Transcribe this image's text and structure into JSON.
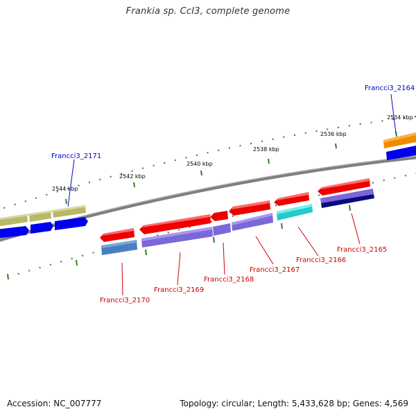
{
  "header": {
    "title": "Frankia sp. CcI3, complete genome"
  },
  "footer": {
    "accession": "Accession: NC_007777",
    "summary": "Topology: circular; Length: 5,433,628 bp; Genes: 4,569"
  },
  "scale_labels": [
    "2534 kbp",
    "2536 kbp",
    "2538 kbp",
    "2540 kbp",
    "2542 kbp",
    "2544 kbp"
  ],
  "gene_labels": [
    "Francci3_2164",
    "Francci3_2165",
    "Francci3_2166",
    "Francci3_2167",
    "Francci3_2168",
    "Francci3_2169",
    "Francci3_2170",
    "Francci3_2171"
  ],
  "colors": {
    "cds": "#ee0000",
    "gene": "#0000ee",
    "backbone": "#7f7f7f",
    "label_red": "#cc0000",
    "label_blue": "#0000cc",
    "tick": "#2e7d1f",
    "olive": "#b8b76a",
    "purple": "#7b68d8",
    "steelblue": "#4a7fbf",
    "cyan": "#22cccc",
    "orange": "#f08a00",
    "navy": "#0a0a80"
  }
}
